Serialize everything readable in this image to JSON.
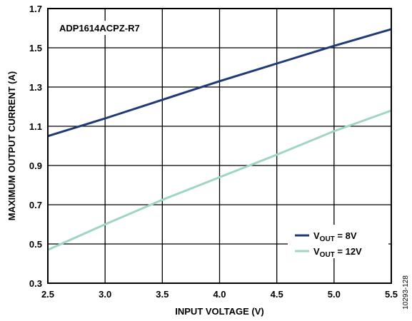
{
  "chart_data": {
    "type": "line",
    "annotation": "ADP1614ACPZ-R7",
    "xlabel": "INPUT VOLTAGE (V)",
    "ylabel": "MAXIMUM OUTPUT CURRENT (A)",
    "xlim": [
      2.5,
      5.5
    ],
    "ylim": [
      0.3,
      1.7
    ],
    "xticks": [
      "2.5",
      "3.0",
      "3.5",
      "4.0",
      "4.5",
      "5.0",
      "5.5"
    ],
    "yticks": [
      "0.3",
      "0.5",
      "0.7",
      "0.9",
      "1.1",
      "1.3",
      "1.5",
      "1.7"
    ],
    "grid": true,
    "legend_position": "bottom-right",
    "figure_id": "10293-128",
    "series": [
      {
        "name_main": "V",
        "name_sub": "OUT",
        "name_rest": " = 8V",
        "color": "#1f3a78",
        "x": [
          2.5,
          3.0,
          3.5,
          4.0,
          4.5,
          5.0,
          5.5
        ],
        "y": [
          1.05,
          1.14,
          1.235,
          1.33,
          1.42,
          1.51,
          1.595
        ]
      },
      {
        "name_main": "V",
        "name_sub": "OUT",
        "name_rest": " = 12V",
        "color": "#9fd6bf",
        "x": [
          2.5,
          3.0,
          3.5,
          4.0,
          4.5,
          5.0,
          5.5
        ],
        "y": [
          0.47,
          0.6,
          0.725,
          0.84,
          0.955,
          1.075,
          1.18
        ]
      }
    ]
  }
}
